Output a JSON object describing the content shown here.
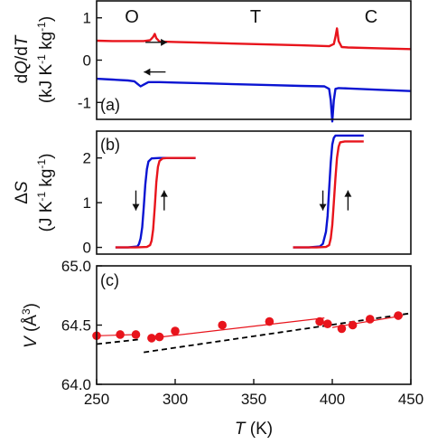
{
  "chart_data": [
    {
      "type": "line",
      "panel_label": "(a)",
      "ylabel_parts": [
        "d",
        "Q",
        "/d",
        "T"
      ],
      "yunit_parts": [
        "(kJ K",
        "-1",
        " kg",
        "-1",
        ")"
      ],
      "phase_labels": [
        "O",
        "T",
        "C"
      ],
      "ylim": [
        -1.4,
        1.4
      ],
      "yticks": [
        "1",
        "0",
        "-1"
      ],
      "xlim": [
        250,
        450
      ],
      "series": [
        {
          "color": "#e8141c",
          "direction": "heating",
          "x": [
            250,
            260,
            270,
            280,
            284,
            286,
            287,
            288,
            290,
            300,
            320,
            340,
            360,
            380,
            398,
            401,
            402,
            403,
            404,
            406,
            410,
            430,
            450
          ],
          "y": [
            0.46,
            0.45,
            0.45,
            0.45,
            0.47,
            0.55,
            0.62,
            0.52,
            0.44,
            0.43,
            0.41,
            0.39,
            0.37,
            0.35,
            0.33,
            0.38,
            0.55,
            0.75,
            0.45,
            0.31,
            0.3,
            0.28,
            0.26
          ]
        },
        {
          "color": "#0a14d2",
          "direction": "cooling",
          "x": [
            250,
            260,
            270,
            274,
            276,
            278,
            280,
            283,
            290,
            300,
            320,
            340,
            360,
            380,
            395,
            398,
            399,
            400,
            401,
            402,
            404,
            410,
            430,
            450
          ],
          "y": [
            -0.44,
            -0.46,
            -0.48,
            -0.5,
            -0.56,
            -0.62,
            -0.58,
            -0.52,
            -0.52,
            -0.53,
            -0.55,
            -0.57,
            -0.59,
            -0.61,
            -0.62,
            -0.68,
            -0.95,
            -1.45,
            -0.95,
            -0.68,
            -0.66,
            -0.67,
            -0.7,
            -0.73
          ]
        }
      ]
    },
    {
      "type": "line",
      "panel_label": "(b)",
      "ylabel_parts": [
        "Δ",
        "S"
      ],
      "yunit_parts": [
        "(J K",
        "-1",
        " kg",
        "-1",
        ")"
      ],
      "ylim": [
        -0.15,
        2.6
      ],
      "yticks": [
        "2",
        "1",
        "0"
      ],
      "xlim": [
        250,
        450
      ],
      "series": [
        {
          "color": "#0a14d2",
          "segments": [
            {
              "x": [
                262,
                270,
                276,
                277,
                278,
                279,
                280,
                281,
                282,
                283,
                285,
                290,
                313
              ],
              "y": [
                0,
                0,
                0.02,
                0.08,
                0.2,
                0.45,
                0.9,
                1.4,
                1.75,
                1.92,
                1.99,
                2.0,
                2.0
              ]
            },
            {
              "x": [
                375,
                385,
                392,
                394,
                396,
                397,
                398,
                399,
                400,
                401,
                402,
                405,
                420
              ],
              "y": [
                0,
                0,
                0.02,
                0.08,
                0.35,
                0.7,
                1.3,
                1.9,
                2.3,
                2.45,
                2.5,
                2.5,
                2.5
              ]
            }
          ]
        },
        {
          "color": "#e8141c",
          "segments": [
            {
              "x": [
                262,
                275,
                282,
                284,
                285,
                286,
                287,
                288,
                289,
                290,
                292,
                295,
                313
              ],
              "y": [
                0,
                0,
                0.01,
                0.05,
                0.15,
                0.4,
                0.9,
                1.45,
                1.8,
                1.93,
                1.99,
                2.0,
                2.0
              ]
            },
            {
              "x": [
                375,
                390,
                396,
                398,
                399,
                400,
                401,
                402,
                403,
                404,
                405,
                408,
                420
              ],
              "y": [
                0,
                0,
                0.01,
                0.05,
                0.2,
                0.5,
                1.0,
                1.55,
                2.0,
                2.25,
                2.35,
                2.37,
                2.37
              ]
            }
          ]
        }
      ]
    },
    {
      "type": "scatter",
      "panel_label": "(c)",
      "ylabel_parts": [
        "V",
        " (Å",
        "3",
        ")"
      ],
      "ylim": [
        64.0,
        65.0
      ],
      "yticks": [
        "65.0",
        "64.5",
        "64.0"
      ],
      "xlim": [
        250,
        450
      ],
      "xticks": [
        "250",
        "300",
        "350",
        "400",
        "450"
      ],
      "xlabel_parts": [
        "T",
        " (K)"
      ],
      "points": {
        "color": "#e8141c",
        "x": [
          250,
          265,
          275,
          285,
          290,
          300,
          330,
          360,
          392,
          397,
          406,
          413,
          424,
          442
        ],
        "y": [
          64.41,
          64.42,
          64.42,
          64.39,
          64.4,
          64.45,
          64.5,
          64.53,
          64.53,
          64.51,
          64.47,
          64.5,
          64.55,
          64.58
        ]
      },
      "lines": [
        {
          "color": "#e8141c",
          "style": "solid",
          "x": [
            250,
            275
          ],
          "y": [
            64.41,
            64.42
          ]
        },
        {
          "color": "#e8141c",
          "style": "solid",
          "x": [
            285,
            395
          ],
          "y": [
            64.39,
            64.56
          ]
        },
        {
          "color": "#e8141c",
          "style": "solid",
          "x": [
            400,
            445
          ],
          "y": [
            64.48,
            64.58
          ]
        },
        {
          "color": "#000000",
          "style": "dashed",
          "x": [
            250,
            278
          ],
          "y": [
            64.34,
            64.38
          ]
        },
        {
          "color": "#000000",
          "style": "dashed",
          "x": [
            280,
            450
          ],
          "y": [
            64.27,
            64.6
          ]
        }
      ]
    }
  ],
  "annotations": {
    "arrows": [
      {
        "panel": 0,
        "x": 288,
        "y": 0.42,
        "dir": "right"
      },
      {
        "panel": 0,
        "x": 287,
        "y": -0.28,
        "dir": "left"
      },
      {
        "panel": 1,
        "x": 275,
        "y": 1.05,
        "dir": "down"
      },
      {
        "panel": 1,
        "x": 293,
        "y": 1.05,
        "dir": "up"
      },
      {
        "panel": 1,
        "x": 394,
        "y": 1.05,
        "dir": "down"
      },
      {
        "panel": 1,
        "x": 410,
        "y": 1.05,
        "dir": "up"
      }
    ]
  }
}
